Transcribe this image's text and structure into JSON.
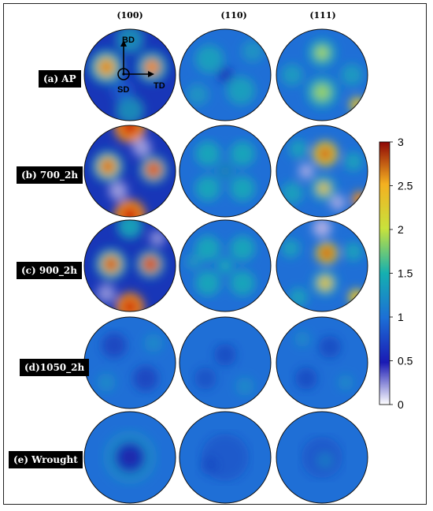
{
  "columns": [
    "(100)",
    "(110)",
    "(111)"
  ],
  "rows": [
    {
      "label": "(a) AP"
    },
    {
      "label": "(b) 700_2h"
    },
    {
      "label": "(c) 900_2h"
    },
    {
      "label": "(d)1050_2h"
    },
    {
      "label": "(e) Wrought"
    }
  ],
  "axes_labels": {
    "bd": "BD",
    "sd": "SD",
    "td": "TD"
  },
  "colorbar": {
    "min": 0,
    "max": 3,
    "ticks": [
      {
        "value": 0,
        "label": "0"
      },
      {
        "value": 0.5,
        "label": "0.5"
      },
      {
        "value": 1,
        "label": "1"
      },
      {
        "value": 1.5,
        "label": "1.5"
      },
      {
        "value": 2,
        "label": "2"
      },
      {
        "value": 2.5,
        "label": "2.5"
      },
      {
        "value": 3,
        "label": "3"
      }
    ],
    "colors": [
      "#ffffff",
      "#1a1ab4",
      "#1c6fd6",
      "#15b0b0",
      "#c8e23c",
      "#f4b020",
      "#c21010"
    ]
  }
}
